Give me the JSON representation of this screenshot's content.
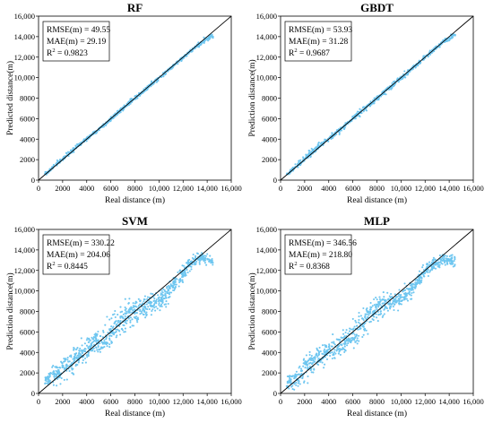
{
  "chart_data": [
    {
      "type": "scatter",
      "title": "RF",
      "xlabel": "Real distance (m)",
      "ylabel": "Predicted distance(m)",
      "xlim": [
        0,
        16000
      ],
      "ylim": [
        0,
        16000
      ],
      "xticks": [
        "0",
        "2000",
        "4000",
        "6000",
        "8000",
        "10,000",
        "12,000",
        "14,000",
        "16,000"
      ],
      "yticks": [
        "0",
        "2000",
        "4000",
        "6000",
        "8000",
        "10,000",
        "12,000",
        "14,000",
        "16,000"
      ],
      "stats": [
        "RMSE(m) = 49.55",
        "MAE(m) = 29.19",
        "R2 = 0.9823"
      ],
      "point_color": "#6ec6f0",
      "reference_line": "y = x",
      "noise_seed": 11,
      "series": [
        {
          "x": [
            500,
            1500,
            2500,
            3500,
            4500,
            5500,
            6500,
            7500,
            8500,
            9500,
            10500,
            11500,
            12500,
            13500,
            14500
          ],
          "y": [
            520,
            1580,
            2600,
            3560,
            4480,
            5450,
            6480,
            7520,
            8450,
            9480,
            10450,
            11480,
            12450,
            13400,
            14150
          ],
          "spread": [
            90,
            160,
            200,
            160,
            140,
            150,
            180,
            200,
            180,
            170,
            150,
            150,
            170,
            180,
            200
          ]
        }
      ]
    },
    {
      "type": "scatter",
      "title": "GBDT",
      "xlabel": "Real distance (m)",
      "ylabel": "Prediction distance(m)",
      "xlim": [
        0,
        16000
      ],
      "ylim": [
        0,
        16000
      ],
      "xticks": [
        "0",
        "2000",
        "4000",
        "6000",
        "8000",
        "10,000",
        "12,000",
        "14,000",
        "16,000"
      ],
      "yticks": [
        "0",
        "2000",
        "4000",
        "6000",
        "8000",
        "10,000",
        "12,000",
        "14,000",
        "16,000"
      ],
      "stats": [
        "RMSE(m) = 53.93",
        "MAE(m) = 31.28",
        "R2 = 0.9687"
      ],
      "point_color": "#6ec6f0",
      "reference_line": "y = x",
      "noise_seed": 23,
      "series": [
        {
          "x": [
            500,
            1500,
            2500,
            3500,
            4500,
            5500,
            6500,
            7500,
            8500,
            9500,
            10500,
            11500,
            12500,
            13500,
            14500
          ],
          "y": [
            560,
            1580,
            2650,
            3600,
            4500,
            5470,
            6480,
            7500,
            8480,
            9450,
            10450,
            11480,
            12480,
            13480,
            14200
          ],
          "spread": [
            120,
            200,
            280,
            220,
            190,
            190,
            220,
            220,
            200,
            200,
            180,
            170,
            190,
            210,
            200
          ]
        }
      ]
    },
    {
      "type": "scatter",
      "title": "SVM",
      "xlabel": "Real distance (m)",
      "ylabel": "Prediction distance(m)",
      "xlim": [
        0,
        16000
      ],
      "ylim": [
        0,
        16000
      ],
      "xticks": [
        "0",
        "2000",
        "4000",
        "6000",
        "8000",
        "10,000",
        "12,000",
        "14,000",
        "16,000"
      ],
      "yticks": [
        "0",
        "2000",
        "4000",
        "6000",
        "8000",
        "10,000",
        "12,000",
        "14,000",
        "16,000"
      ],
      "stats": [
        "RMSE(m) = 330.22",
        "MAE(m) = 204.06",
        "R2 = 0.8445"
      ],
      "point_color": "#6ec6f0",
      "reference_line": "y = x",
      "noise_seed": 37,
      "series": [
        {
          "x": [
            500,
            1500,
            2500,
            3500,
            4500,
            5500,
            6500,
            7500,
            8500,
            9500,
            10500,
            11500,
            12500,
            13500,
            14500
          ],
          "y": [
            1100,
            1900,
            2900,
            3700,
            4700,
            5400,
            6600,
            7700,
            8300,
            8800,
            9400,
            11000,
            12600,
            13200,
            12900
          ],
          "spread": [
            500,
            800,
            1000,
            900,
            900,
            1000,
            1100,
            1100,
            900,
            900,
            900,
            700,
            500,
            400,
            400
          ]
        }
      ]
    },
    {
      "type": "scatter",
      "title": "MLP",
      "xlabel": "Real distance (m)",
      "ylabel": "Prediction distance(m)",
      "xlim": [
        0,
        16000
      ],
      "ylim": [
        0,
        16000
      ],
      "xticks": [
        "0",
        "2000",
        "4000",
        "6000",
        "8000",
        "10,000",
        "12,000",
        "14,000",
        "16,000"
      ],
      "yticks": [
        "0",
        "2000",
        "4000",
        "6000",
        "8000",
        "10,000",
        "12,000",
        "14,000",
        "16,000"
      ],
      "stats": [
        "RMSE(m) = 346.56",
        "MAE(m) = 218.80",
        "R2 = 0.8368"
      ],
      "point_color": "#6ec6f0",
      "reference_line": "y = x",
      "noise_seed": 53,
      "series": [
        {
          "x": [
            500,
            1500,
            2500,
            3500,
            4500,
            5500,
            6500,
            7500,
            8500,
            9500,
            10500,
            11500,
            12500,
            13500,
            14500
          ],
          "y": [
            900,
            1800,
            2900,
            3700,
            4400,
            5100,
            6300,
            8000,
            8700,
            9000,
            9700,
            11100,
            12500,
            13100,
            12900
          ],
          "spread": [
            500,
            800,
            1000,
            900,
            900,
            900,
            1200,
            1100,
            800,
            700,
            700,
            600,
            500,
            400,
            400
          ]
        }
      ]
    }
  ]
}
